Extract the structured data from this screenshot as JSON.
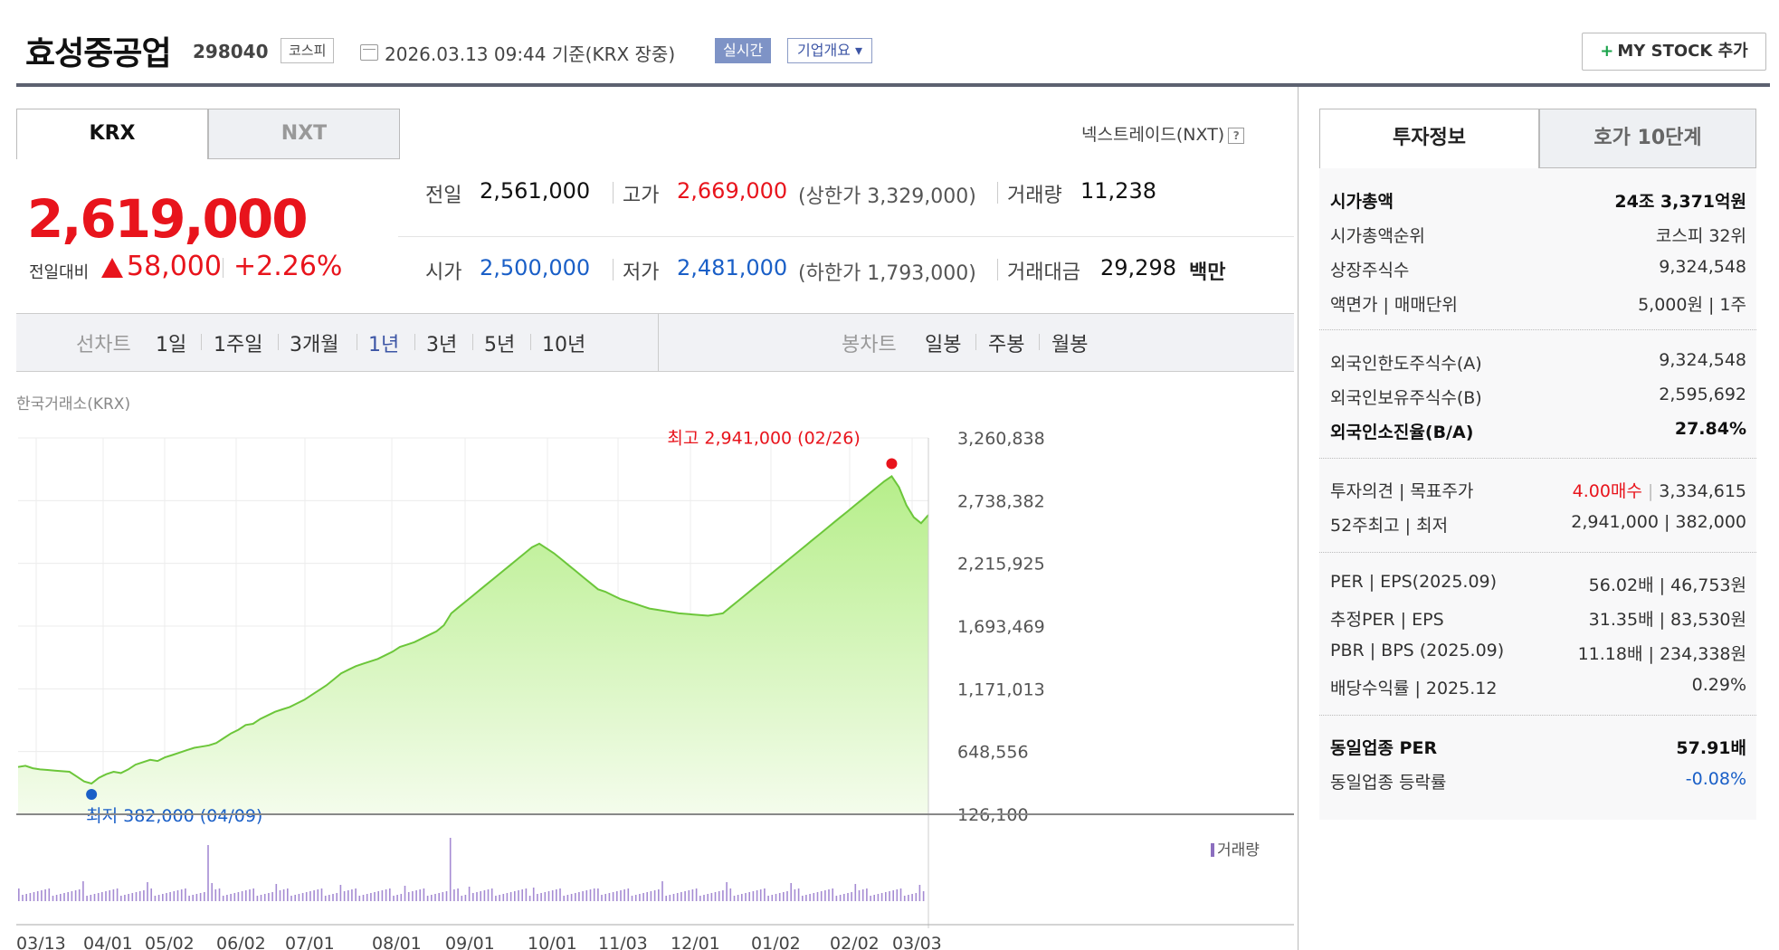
{
  "header": {
    "title": "효성중공업",
    "code": "298040",
    "market": "코스피",
    "datetime": "2026.03.13 09:44  기준(KRX 장중)",
    "realtime": "실시간",
    "overview": "기업개요 ▾",
    "mystock_label": "MY STOCK 추가"
  },
  "tabs": {
    "krx": "KRX",
    "nxt": "NXT"
  },
  "nxt_link": "넥스트레이드(NXT)",
  "help_glyph": "?",
  "price": {
    "current": "2,619,000",
    "change_label": "전일대비",
    "change": "58,000",
    "change_pct": "+2.26%",
    "direction": "up"
  },
  "quote": {
    "prev_label": "전일",
    "prev": "2,561,000",
    "high_label": "고가",
    "high": "2,669,000",
    "upper_limit": "(상한가 3,329,000)",
    "volume_label": "거래량",
    "volume": "11,238",
    "open_label": "시가",
    "open": "2,500,000",
    "low_label": "저가",
    "low": "2,481,000",
    "lower_limit": "(하한가 1,793,000)",
    "amount_label": "거래대금",
    "amount": "29,298",
    "amount_unit": "백만"
  },
  "periods": {
    "line_label": "선차트",
    "line_items": [
      "1일",
      "1주일",
      "3개월",
      "1년",
      "3년",
      "5년",
      "10년"
    ],
    "active": "1년",
    "candle_label": "봉차트",
    "candle_items": [
      "일봉",
      "주봉",
      "월봉"
    ]
  },
  "exchange_label": "한국거래소(KRX)",
  "chart_data": {
    "type": "area",
    "y_ticks": [
      "3,260,838",
      "2,738,382",
      "2,215,925",
      "1,693,469",
      "1,171,013",
      "648,556",
      "126,100"
    ],
    "ylim": [
      126100,
      3260838
    ],
    "x_ticks": [
      "03/13",
      "04/01",
      "05/02",
      "06/02",
      "07/01",
      "08/01",
      "09/01",
      "10/01",
      "11/03",
      "12/01",
      "01/02",
      "02/02",
      "03/03"
    ],
    "max_label": "최고 2,941,000 (02/26)",
    "min_label": "최저 382,000 (04/09)",
    "volume_label": "거래량",
    "series": [
      {
        "values": [
          520000,
          530000,
          510000,
          500000,
          495000,
          490000,
          485000,
          480000,
          440000,
          400000,
          382000,
          430000,
          460000,
          480000,
          470000,
          500000,
          540000,
          560000,
          580000,
          570000,
          600000,
          620000,
          640000,
          660000,
          680000,
          690000,
          700000,
          720000,
          760000,
          800000,
          830000,
          870000,
          880000,
          920000,
          950000,
          980000,
          1000000,
          1020000,
          1050000,
          1080000,
          1120000,
          1160000,
          1200000,
          1250000,
          1300000,
          1330000,
          1360000,
          1380000,
          1400000,
          1420000,
          1450000,
          1480000,
          1520000,
          1540000,
          1560000,
          1590000,
          1620000,
          1650000,
          1700000,
          1800000,
          1850000,
          1900000,
          1950000,
          2000000,
          2050000,
          2100000,
          2150000,
          2200000,
          2250000,
          2300000,
          2350000,
          2380000,
          2340000,
          2300000,
          2250000,
          2200000,
          2150000,
          2100000,
          2050000,
          2000000,
          1980000,
          1950000,
          1920000,
          1900000,
          1880000,
          1860000,
          1840000,
          1830000,
          1820000,
          1810000,
          1800000,
          1795000,
          1790000,
          1785000,
          1780000,
          1790000,
          1800000,
          1850000,
          1900000,
          1950000,
          2000000,
          2050000,
          2100000,
          2150000,
          2200000,
          2250000,
          2300000,
          2350000,
          2400000,
          2450000,
          2500000,
          2550000,
          2600000,
          2650000,
          2700000,
          2750000,
          2800000,
          2850000,
          2900000,
          2941000,
          2850000,
          2700000,
          2600000,
          2550000,
          2619000
        ]
      }
    ]
  },
  "right_panel": {
    "tabs": [
      "투자정보",
      "호가 10단계"
    ],
    "rows": [
      {
        "label": "시가총액",
        "value": "24조 3,371억원"
      },
      {
        "label": "시가총액순위",
        "value": "코스피 32위"
      },
      {
        "label": "상장주식수",
        "value": "9,324,548"
      },
      {
        "label": "액면가 | 매매단위",
        "value": "5,000원 | 1주"
      },
      {
        "label": "외국인한도주식수(A)",
        "value": "9,324,548"
      },
      {
        "label": "외국인보유주식수(B)",
        "value": "2,595,692"
      },
      {
        "label": "외국인소진율(B/A)",
        "value": "27.84%"
      },
      {
        "label": "투자의견 | 목표주가",
        "value_a": "4.00매수",
        "value_b": "3,334,615"
      },
      {
        "label": "52주최고 | 최저",
        "value": "2,941,000 | 382,000"
      },
      {
        "label": "PER | EPS(2025.09)",
        "value": "56.02배 | 46,753원"
      },
      {
        "label": "추정PER | EPS",
        "value": "31.35배 | 83,530원"
      },
      {
        "label": "PBR | BPS (2025.09)",
        "value": "11.18배 | 234,338원"
      },
      {
        "label": "배당수익률 | 2025.12",
        "value": "0.29%"
      },
      {
        "label": "동일업종 PER",
        "value": "57.91배"
      },
      {
        "label": "동일업종 등락률",
        "value": "-0.08%"
      }
    ]
  }
}
